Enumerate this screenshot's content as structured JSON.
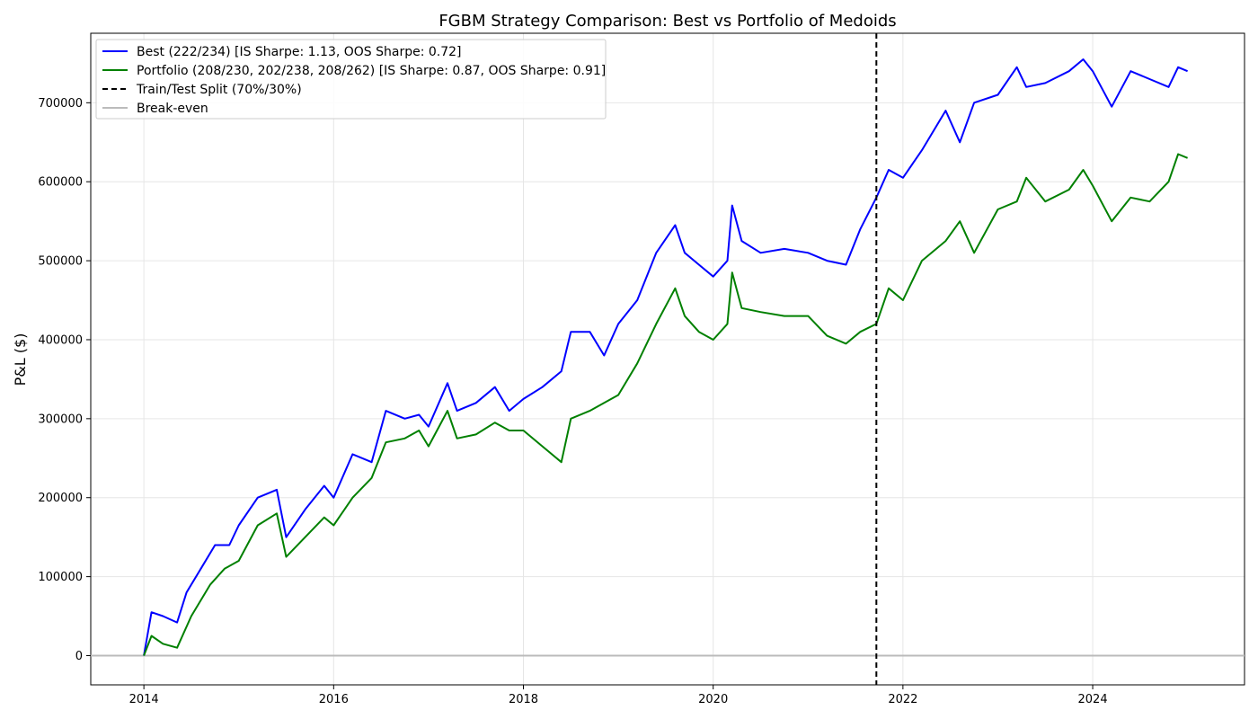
{
  "chart_data": {
    "type": "line",
    "title": "FGBM Strategy Comparison: Best vs Portfolio of Medoids",
    "xlabel": "",
    "ylabel": "P&L ($)",
    "xlim": [
      2013.44,
      2025.6
    ],
    "ylim": [
      -37000,
      788000
    ],
    "xticks": [
      2014,
      2016,
      2018,
      2020,
      2022,
      2024
    ],
    "xtick_labels": [
      "2014",
      "2016",
      "2018",
      "2020",
      "2022",
      "2024"
    ],
    "yticks": [
      0,
      100000,
      200000,
      300000,
      400000,
      500000,
      600000,
      700000
    ],
    "ytick_labels": [
      "0",
      "100000",
      "200000",
      "300000",
      "400000",
      "500000",
      "600000",
      "700000"
    ],
    "grid": true,
    "legend_position": "top-left",
    "colors": {
      "best": "#0000ff",
      "portfolio": "#008000",
      "split": "#000000",
      "breakeven": "#bbbbbb"
    },
    "split_x": 2021.72,
    "breakeven_y": 0,
    "series": [
      {
        "name": "Best (222/234) [IS Sharpe: 1.13, OOS Sharpe: 0.72]",
        "color": "#0000ff",
        "x": [
          2014.0,
          2014.08,
          2014.2,
          2014.35,
          2014.45,
          2014.6,
          2014.75,
          2014.9,
          2015.0,
          2015.2,
          2015.4,
          2015.5,
          2015.7,
          2015.9,
          2016.0,
          2016.2,
          2016.4,
          2016.55,
          2016.75,
          2016.9,
          2017.0,
          2017.2,
          2017.3,
          2017.5,
          2017.7,
          2017.85,
          2018.0,
          2018.2,
          2018.4,
          2018.5,
          2018.7,
          2018.85,
          2019.0,
          2019.2,
          2019.4,
          2019.6,
          2019.7,
          2019.85,
          2020.0,
          2020.15,
          2020.2,
          2020.3,
          2020.5,
          2020.75,
          2021.0,
          2021.2,
          2021.4,
          2021.55,
          2021.72,
          2021.85,
          2022.0,
          2022.2,
          2022.45,
          2022.6,
          2022.75,
          2023.0,
          2023.2,
          2023.3,
          2023.5,
          2023.75,
          2023.9,
          2024.0,
          2024.2,
          2024.4,
          2024.6,
          2024.8,
          2024.9,
          2025.0
        ],
        "values": [
          0,
          55000,
          50000,
          42000,
          80000,
          110000,
          140000,
          140000,
          165000,
          200000,
          210000,
          150000,
          185000,
          215000,
          200000,
          255000,
          245000,
          310000,
          300000,
          305000,
          290000,
          345000,
          310000,
          320000,
          340000,
          310000,
          325000,
          340000,
          360000,
          410000,
          410000,
          380000,
          420000,
          450000,
          510000,
          545000,
          510000,
          495000,
          480000,
          500000,
          570000,
          525000,
          510000,
          515000,
          510000,
          500000,
          495000,
          540000,
          580000,
          615000,
          605000,
          640000,
          690000,
          650000,
          700000,
          710000,
          745000,
          720000,
          725000,
          740000,
          755000,
          740000,
          695000,
          740000,
          730000,
          720000,
          745000,
          740000
        ]
      },
      {
        "name": "Portfolio (208/230, 202/238, 208/262) [IS Sharpe: 0.87, OOS Sharpe: 0.91]",
        "color": "#008000",
        "x": [
          2014.0,
          2014.08,
          2014.2,
          2014.35,
          2014.5,
          2014.7,
          2014.85,
          2015.0,
          2015.2,
          2015.4,
          2015.5,
          2015.7,
          2015.9,
          2016.0,
          2016.2,
          2016.4,
          2016.55,
          2016.75,
          2016.9,
          2017.0,
          2017.2,
          2017.3,
          2017.5,
          2017.7,
          2017.85,
          2018.0,
          2018.2,
          2018.4,
          2018.5,
          2018.7,
          2018.85,
          2019.0,
          2019.2,
          2019.4,
          2019.6,
          2019.7,
          2019.85,
          2020.0,
          2020.15,
          2020.2,
          2020.3,
          2020.5,
          2020.75,
          2021.0,
          2021.2,
          2021.4,
          2021.55,
          2021.72,
          2021.85,
          2022.0,
          2022.2,
          2022.45,
          2022.6,
          2022.75,
          2023.0,
          2023.2,
          2023.3,
          2023.5,
          2023.75,
          2023.9,
          2024.0,
          2024.2,
          2024.4,
          2024.6,
          2024.8,
          2024.9,
          2025.0
        ],
        "values": [
          0,
          25000,
          15000,
          10000,
          50000,
          90000,
          110000,
          120000,
          165000,
          180000,
          125000,
          150000,
          175000,
          165000,
          200000,
          225000,
          270000,
          275000,
          285000,
          265000,
          310000,
          275000,
          280000,
          295000,
          285000,
          285000,
          265000,
          245000,
          300000,
          310000,
          320000,
          330000,
          370000,
          420000,
          465000,
          430000,
          410000,
          400000,
          420000,
          485000,
          440000,
          435000,
          430000,
          430000,
          405000,
          395000,
          410000,
          420000,
          465000,
          450000,
          500000,
          525000,
          550000,
          510000,
          565000,
          575000,
          605000,
          575000,
          590000,
          615000,
          595000,
          550000,
          580000,
          575000,
          600000,
          635000,
          630000
        ]
      }
    ],
    "legend": [
      {
        "label": "Best (222/234) [IS Sharpe: 1.13, OOS Sharpe: 0.72]",
        "style": "solid",
        "color": "#0000ff"
      },
      {
        "label": "Portfolio (208/230, 202/238, 208/262) [IS Sharpe: 0.87, OOS Sharpe: 0.91]",
        "style": "solid",
        "color": "#008000"
      },
      {
        "label": "Train/Test Split (70%/30%)",
        "style": "dashed",
        "color": "#000000"
      },
      {
        "label": "Break-even",
        "style": "solid",
        "color": "#bbbbbb"
      }
    ]
  }
}
